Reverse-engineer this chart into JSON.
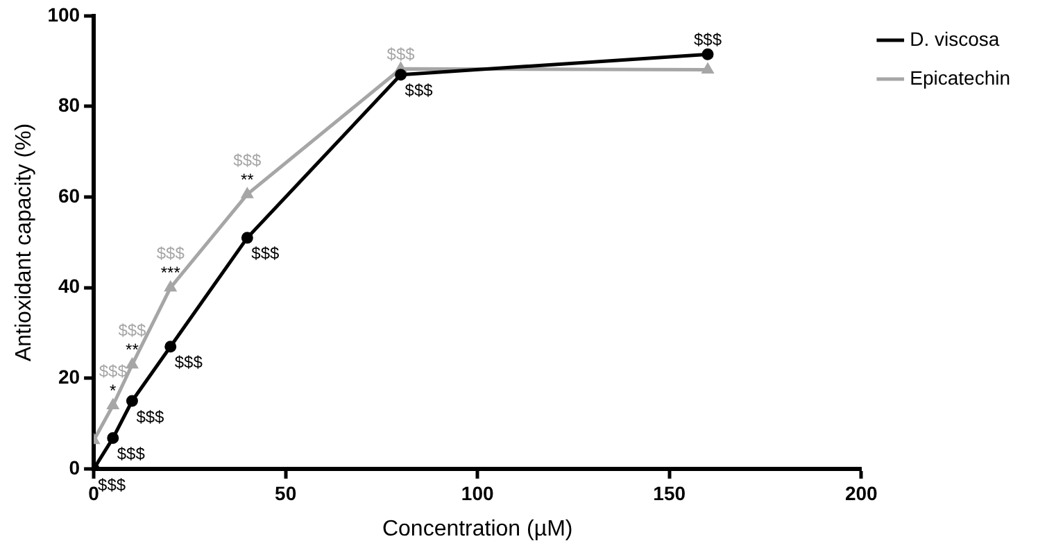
{
  "chart_data": {
    "type": "line",
    "xlabel": "Concentration (µM)",
    "ylabel": "Antioxidant capacity (%)",
    "x": [
      0,
      5,
      10,
      20,
      40,
      80,
      160
    ],
    "xlim": [
      0,
      200
    ],
    "xticks": [
      0,
      50,
      100,
      150,
      200
    ],
    "ylim": [
      0,
      100
    ],
    "yticks": [
      0,
      20,
      40,
      60,
      80,
      100
    ],
    "grid": false,
    "legend": "right",
    "series": [
      {
        "name": "D. viscosa",
        "color": "#000000",
        "marker": "circle",
        "values": [
          0,
          6.8,
          15,
          27,
          51,
          87,
          91.5
        ]
      },
      {
        "name": "Epicatechin",
        "color": "#a6a6a6",
        "marker": "triangle",
        "x": [
          0,
          5,
          10,
          20,
          40,
          80,
          160
        ],
        "values": [
          6.3,
          14,
          23,
          40,
          60.6,
          88.3,
          88.1
        ]
      }
    ],
    "annotations": [
      {
        "text": "$$$",
        "x": 0,
        "y": 0
      },
      {
        "text": "$$$",
        "x": 5,
        "y": 6.8
      },
      {
        "text": "$$$",
        "x": 10,
        "y": 15
      },
      {
        "text": "$$$",
        "x": 20,
        "y": 27
      },
      {
        "text": "$$$",
        "x": 40,
        "y": 51
      },
      {
        "text": "$$$",
        "x": 80,
        "y": 87
      },
      {
        "text": "$$$",
        "x": 160,
        "y": 91.5
      },
      {
        "text": "*",
        "x": 5,
        "y": 14
      },
      {
        "text": "**",
        "x": 10,
        "y": 23
      },
      {
        "text": "***",
        "x": 20,
        "y": 40
      },
      {
        "text": "**",
        "x": 40,
        "y": 60.6
      },
      {
        "text": "$$$",
        "x": 5,
        "y": 14
      },
      {
        "text": "$$$",
        "x": 10,
        "y": 23
      },
      {
        "text": "$$$",
        "x": 20,
        "y": 40
      },
      {
        "text": "$$$",
        "x": 40,
        "y": 60.6
      },
      {
        "text": "$$$",
        "x": 80,
        "y": 88.3
      }
    ]
  }
}
